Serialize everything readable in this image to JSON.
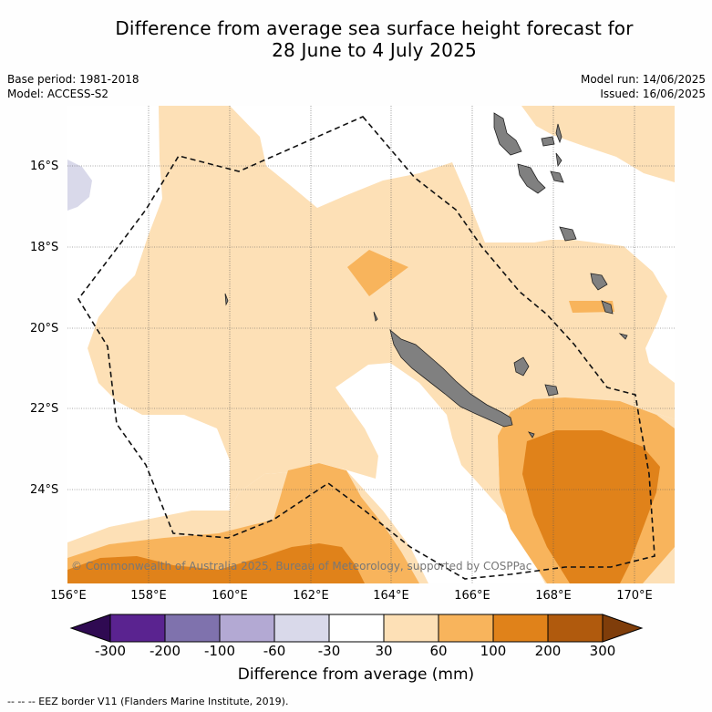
{
  "title_line1": "Difference from average sea surface height forecast for",
  "title_line2": "28 June to 4 July 2025",
  "meta_left": {
    "base_period": "Base period: 1981-2018",
    "model": "Model: ACCESS-S2"
  },
  "meta_right": {
    "model_run": "Model run: 14/06/2025",
    "issued": "Issued: 16/06/2025"
  },
  "lat_labels": [
    "16°S",
    "18°S",
    "20°S",
    "22°S",
    "24°S"
  ],
  "lon_labels": [
    "156°E",
    "158°E",
    "160°E",
    "162°E",
    "164°E",
    "166°E",
    "168°E",
    "170°E"
  ],
  "copyright": "© Commonwealth of Australia 2025, Bureau of Meteorology, supported by COSPPac",
  "colorbar": {
    "ticks": [
      "-300",
      "-200",
      "-100",
      "-60",
      "-30",
      "30",
      "60",
      "100",
      "200",
      "300"
    ],
    "colors": [
      "#5a2390",
      "#7f72ad",
      "#b3a9d3",
      "#d9d9ea",
      "#ffffff",
      "#fde0b6",
      "#f8b45c",
      "#e0821a",
      "#b05a0d"
    ],
    "under_color": "#2f0a52",
    "over_color": "#7f3d0a",
    "label": "Difference from average (mm)"
  },
  "footer": "-- -- -- EEZ border V11 (Flanders Marine Institute, 2019)."
}
